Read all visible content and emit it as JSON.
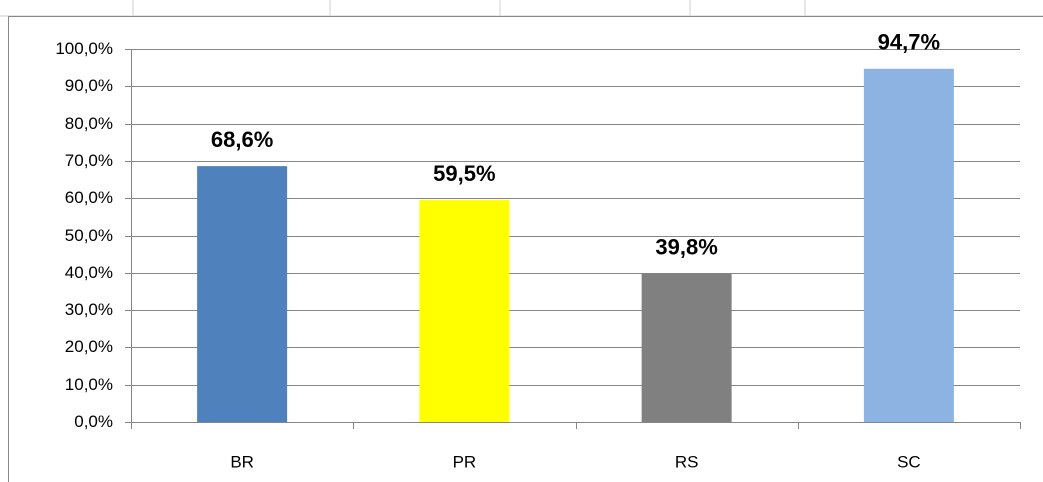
{
  "chart_data": {
    "type": "bar",
    "categories": [
      "BR",
      "PR",
      "RS",
      "SC"
    ],
    "values": [
      68.6,
      59.5,
      39.8,
      94.7
    ],
    "value_labels": [
      "68,6%",
      "59,5%",
      "39,8%",
      "94,7%"
    ],
    "colors": [
      "#4f81bd",
      "#ffff00",
      "#808080",
      "#8db3e2"
    ],
    "ylim": [
      0,
      100
    ],
    "yticks": [
      {
        "value": 0,
        "label": "0,0%"
      },
      {
        "value": 10,
        "label": "10,0%"
      },
      {
        "value": 20,
        "label": "20,0%"
      },
      {
        "value": 30,
        "label": "30,0%"
      },
      {
        "value": 40,
        "label": "40,0%"
      },
      {
        "value": 50,
        "label": "50,0%"
      },
      {
        "value": 60,
        "label": "60,0%"
      },
      {
        "value": 70,
        "label": "70,0%"
      },
      {
        "value": 80,
        "label": "80,0%"
      },
      {
        "value": 90,
        "label": "90,0%"
      },
      {
        "value": 100,
        "label": "100,0%"
      }
    ],
    "grid": true
  }
}
